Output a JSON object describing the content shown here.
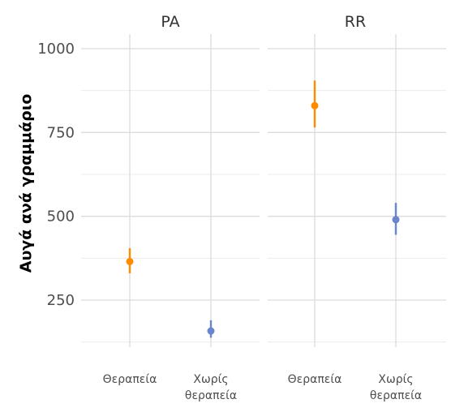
{
  "chart_data": {
    "type": "scatter",
    "subtype": "point-range, faceted",
    "ylabel": "Αυγά ανά γραμμάριο",
    "xlabel": "",
    "ylim": [
      110,
      1050
    ],
    "yticks": [
      250,
      500,
      750,
      1000
    ],
    "grid": true,
    "legend": "none",
    "categories": [
      {
        "label": "Θεραπεία",
        "lines": [
          "Θεραπεία"
        ],
        "color": "#FF8C00"
      },
      {
        "label": "Χωρίς θεραπεία",
        "lines": [
          "Χωρίς",
          "θεραπεία"
        ],
        "color": "#6A85CC"
      }
    ],
    "facets": [
      {
        "label": "PA",
        "points": [
          {
            "category": "Θεραπεία",
            "y": 365,
            "ymin": 330,
            "ymax": 405
          },
          {
            "category": "Χωρίς θεραπεία",
            "y": 158,
            "ymin": 138,
            "ymax": 190
          }
        ]
      },
      {
        "label": "RR",
        "points": [
          {
            "category": "Θεραπεία",
            "y": 830,
            "ymin": 765,
            "ymax": 905
          },
          {
            "category": "Χωρίς θεραπεία",
            "y": 490,
            "ymin": 445,
            "ymax": 540
          }
        ]
      }
    ]
  }
}
